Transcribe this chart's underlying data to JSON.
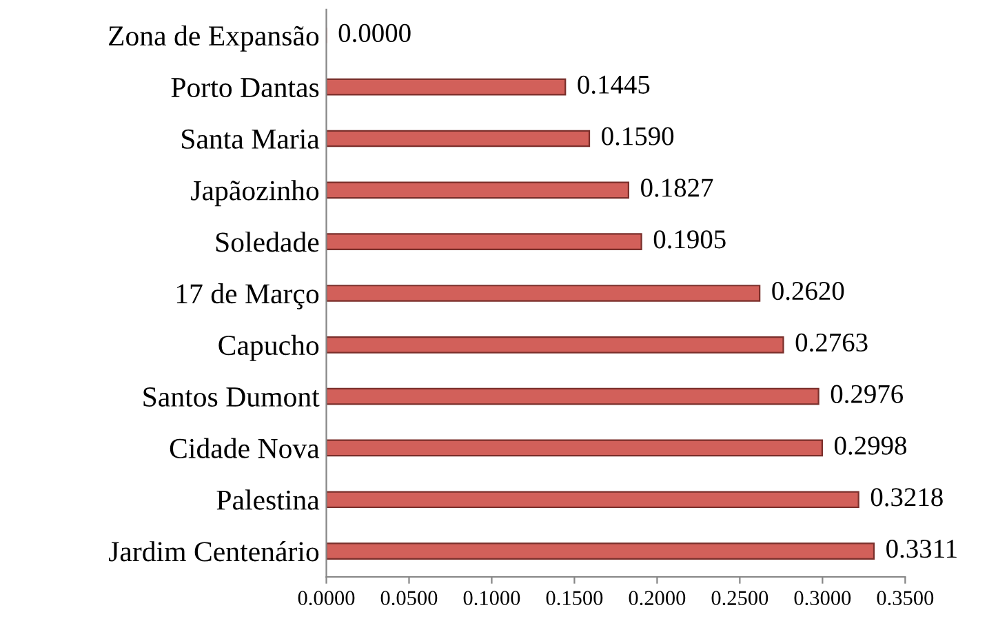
{
  "chart_data": {
    "type": "bar",
    "orientation": "horizontal",
    "categories": [
      "Zona de Expansão",
      "Porto Dantas",
      "Santa Maria",
      "Japãozinho",
      "Soledade",
      "17 de Março",
      "Capucho",
      "Santos Dumont",
      "Cidade Nova",
      "Palestina",
      "Jardim Centenário"
    ],
    "values": [
      0.0,
      0.1445,
      0.159,
      0.1827,
      0.1905,
      0.262,
      0.2763,
      0.2976,
      0.2998,
      0.3218,
      0.3311
    ],
    "value_labels": [
      "0.0000",
      "0.1445",
      "0.1590",
      "0.1827",
      "0.1905",
      "0.2620",
      "0.2763",
      "0.2976",
      "0.2998",
      "0.3218",
      "0.3311"
    ],
    "color": "#d2605a",
    "xlim": [
      0,
      0.35
    ],
    "xticks": [
      {
        "value": 0,
        "label": "0.0000"
      },
      {
        "value": 0.05,
        "label": "0.0500"
      },
      {
        "value": 0.1,
        "label": "0.1000"
      },
      {
        "value": 0.15,
        "label": "0.1500"
      },
      {
        "value": 0.2,
        "label": "0.2000"
      },
      {
        "value": 0.25,
        "label": "0.2500"
      },
      {
        "value": 0.3,
        "label": "0.3000"
      },
      {
        "value": 0.35,
        "label": "0.3500"
      }
    ],
    "grid": false,
    "legend": false
  }
}
